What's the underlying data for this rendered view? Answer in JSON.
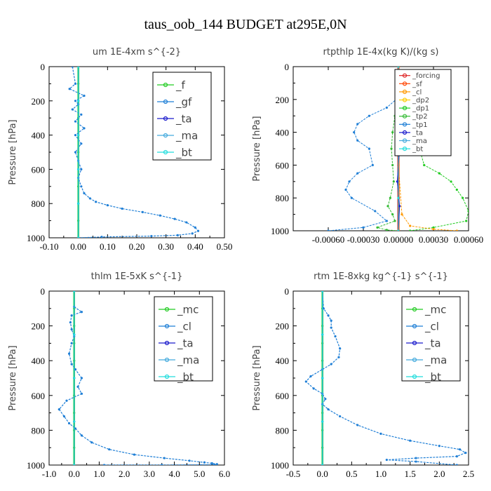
{
  "figure_title": "taus_oob_144  BUDGET at295E,0N",
  "colors": {
    "f": "#22cc22",
    "gf": "#1f7fd6",
    "ta": "#1a1acc",
    "ma": "#44aadd",
    "bt": "#22dddd",
    "mc": "#22cc22",
    "cl": "#1f7fd6",
    "forcing": "#dd2222",
    "sf": "#ff4400",
    "cl_rt": "#ff9900",
    "dp2": "#ffcc00",
    "dp1": "#22cc22",
    "tp2": "#33bb33",
    "tp1": "#1f7fd6"
  },
  "chart_data": [
    {
      "type": "line",
      "title": "um  1E-4xm s^{-2}",
      "ylabel": "Pressure [hPa]",
      "xlim": [
        -0.1,
        0.5
      ],
      "ylim": [
        1000,
        0
      ],
      "y_inverted": true,
      "xticks": [
        "-0.10",
        "0.00",
        "0.10",
        "0.20",
        "0.30",
        "0.40",
        "0.50"
      ],
      "yticks": [
        "0",
        "200",
        "400",
        "600",
        "800",
        "1000"
      ],
      "legend": [
        "_f",
        "_gf",
        "_ta",
        "_ma",
        "_bt"
      ],
      "legend_position": "top-right",
      "series": [
        {
          "name": "_f",
          "color_key": "f",
          "lw": 2.5,
          "x": [
            0,
            0,
            0,
            0,
            0,
            0,
            0,
            0,
            0,
            0,
            0
          ],
          "y": [
            0,
            100,
            200,
            300,
            400,
            500,
            600,
            700,
            800,
            900,
            1000
          ]
        },
        {
          "name": "_gf",
          "color_key": "gf",
          "lw": 1.2,
          "x": [
            -0.02,
            -0.01,
            -0.03,
            0.02,
            -0.01,
            0.0,
            -0.02,
            0.01,
            -0.01,
            0.02,
            -0.01,
            0.01,
            -0.01,
            0.0,
            0.01,
            0.0,
            0.01,
            0.02,
            0.04,
            0.06,
            0.1,
            0.15,
            0.22,
            0.28,
            0.33,
            0.37,
            0.4,
            0.41,
            0.39,
            0.34,
            0.25,
            0.08,
            0.0
          ],
          "y": [
            0,
            100,
            130,
            170,
            200,
            220,
            250,
            280,
            320,
            360,
            400,
            450,
            500,
            550,
            600,
            650,
            700,
            740,
            770,
            790,
            810,
            830,
            850,
            870,
            890,
            910,
            940,
            960,
            975,
            985,
            990,
            995,
            1000
          ]
        },
        {
          "name": "_ta",
          "color_key": "ta",
          "lw": 1,
          "x": [
            0,
            0,
            0,
            0,
            0,
            0
          ],
          "y": [
            0,
            200,
            400,
            600,
            800,
            1000
          ]
        },
        {
          "name": "_ma",
          "color_key": "ma",
          "lw": 1,
          "x": [
            0,
            0,
            0,
            0,
            0,
            0
          ],
          "y": [
            0,
            200,
            400,
            600,
            800,
            1000
          ]
        },
        {
          "name": "_bt",
          "color_key": "bt",
          "lw": 1,
          "x": [
            0,
            0,
            0,
            0,
            0,
            0
          ],
          "y": [
            0,
            200,
            400,
            600,
            800,
            1000
          ]
        }
      ]
    },
    {
      "type": "line",
      "title": "rtpthlp  1E-4x(kg K)/(kg s)",
      "ylabel": "Pressure [hPa]",
      "xlim": [
        -0.0009,
        0.0006
      ],
      "ylim": [
        1000,
        0
      ],
      "y_inverted": true,
      "xticks": [
        "-0.00060",
        "-0.00030",
        "0.00000",
        "0.00030",
        "0.00060"
      ],
      "xtick_values": [
        -0.0006,
        -0.0003,
        0.0,
        0.0003,
        0.0006
      ],
      "yticks": [
        "0",
        "200",
        "400",
        "600",
        "800",
        "1000"
      ],
      "legend": [
        "_forcing",
        "_sf",
        "_cl",
        "_dp2",
        "_dp1",
        "_tp2",
        "_tp1",
        "_ta",
        "_ma",
        "_bt"
      ],
      "legend_position": "top-right",
      "series": [
        {
          "name": "_tp1",
          "color_key": "tp1",
          "lw": 1,
          "x": [
            0,
            -2e-05,
            -0.0001,
            -0.00025,
            -0.00035,
            -0.00038,
            -0.00035,
            -0.00025,
            -0.00022,
            -0.00035,
            -0.00042,
            -0.00045,
            -0.0004,
            -0.0002,
            -0.0001,
            -0.0003,
            -0.0006
          ],
          "y": [
            0,
            200,
            250,
            300,
            350,
            400,
            450,
            500,
            600,
            650,
            700,
            750,
            800,
            880,
            940,
            980,
            1000
          ]
        },
        {
          "name": "_dp1",
          "color_key": "dp1",
          "lw": 1,
          "x": [
            0,
            3e-05,
            0.0001,
            0.00022,
            0.00026,
            0.00025,
            0.0002,
            0.00018,
            0.00022,
            0.00035,
            0.00045,
            0.0005,
            0.00055,
            0.0006,
            0.00058,
            0.0003,
            0.0001
          ],
          "y": [
            0,
            200,
            250,
            300,
            350,
            400,
            450,
            500,
            600,
            650,
            700,
            750,
            800,
            880,
            940,
            980,
            1000
          ]
        },
        {
          "name": "_cl",
          "color_key": "cl_rt",
          "lw": 1,
          "x": [
            0,
            0,
            3e-05,
            0.0001,
            0.0003,
            0.0005
          ],
          "y": [
            0,
            600,
            900,
            970,
            990,
            1000
          ]
        },
        {
          "name": "_tp2",
          "color_key": "tp2",
          "lw": 1,
          "x": [
            0,
            -3e-05,
            -5e-05,
            -6e-05,
            -5e-05,
            -4e-05,
            -7e-05,
            -9e-05,
            -5e-05,
            -3e-05,
            -0.00018,
            -0.0001,
            0
          ],
          "y": [
            0,
            300,
            400,
            500,
            600,
            700,
            800,
            850,
            900,
            940,
            980,
            995,
            1000
          ]
        },
        {
          "name": "_forcing",
          "color_key": "forcing",
          "lw": 3,
          "x": [
            0,
            0,
            0,
            0,
            0,
            0
          ],
          "y": [
            0,
            200,
            400,
            600,
            800,
            1000
          ]
        },
        {
          "name": "_sf",
          "color_key": "sf",
          "lw": 1.5,
          "x": [
            5e-06,
            5e-06,
            5e-06,
            5e-06
          ],
          "y": [
            0,
            400,
            800,
            1000
          ]
        },
        {
          "name": "_dp2",
          "color_key": "dp2",
          "lw": 1,
          "x": [
            0,
            0,
            0,
            0
          ],
          "y": [
            0,
            400,
            800,
            1000
          ]
        },
        {
          "name": "_ta",
          "color_key": "ta",
          "lw": 1,
          "x": [
            0,
            1e-05,
            -1e-05,
            1e-05,
            0
          ],
          "y": [
            0,
            500,
            700,
            850,
            1000
          ]
        },
        {
          "name": "_ma",
          "color_key": "ma",
          "lw": 1,
          "x": [
            0,
            0,
            0,
            0
          ],
          "y": [
            0,
            400,
            800,
            1000
          ]
        },
        {
          "name": "_bt",
          "color_key": "bt",
          "lw": 1,
          "x": [
            0,
            0,
            0,
            0
          ],
          "y": [
            0,
            400,
            800,
            1000
          ]
        }
      ]
    },
    {
      "type": "line",
      "title": "thlm  1E-5xK s^{-1}",
      "ylabel": "Pressure [hPa]",
      "xlim": [
        -1.0,
        6.0
      ],
      "ylim": [
        1000,
        0
      ],
      "y_inverted": true,
      "xticks": [
        "-1.0",
        "0.0",
        "1.0",
        "2.0",
        "3.0",
        "4.0",
        "5.0",
        "6.0"
      ],
      "yticks": [
        "0",
        "200",
        "400",
        "600",
        "800",
        "1000"
      ],
      "legend": [
        "_mc",
        "_cl",
        "_ta",
        "_ma",
        "_bt"
      ],
      "legend_position": "top-right",
      "series": [
        {
          "name": "_mc",
          "color_key": "mc",
          "lw": 2.5,
          "x": [
            0,
            0,
            0,
            0,
            0,
            0,
            0,
            0,
            0,
            0,
            0
          ],
          "y": [
            0,
            100,
            200,
            300,
            400,
            500,
            600,
            700,
            800,
            900,
            1000
          ]
        },
        {
          "name": "_cl",
          "color_key": "cl",
          "lw": 1.2,
          "x": [
            0,
            0.0,
            0.3,
            -0.1,
            -0.15,
            -0.1,
            0.0,
            -0.1,
            -0.2,
            -0.1,
            0.05,
            0.3,
            0.15,
            0.3,
            -0.3,
            -0.6,
            -0.4,
            -0.2,
            0.05,
            0.3,
            0.7,
            1.4,
            2.4,
            3.6,
            4.6,
            5.2,
            5.5,
            5.7,
            5.6,
            3.5,
            1.2
          ],
          "y": [
            0,
            90,
            120,
            140,
            180,
            220,
            260,
            300,
            360,
            420,
            450,
            500,
            550,
            590,
            630,
            680,
            720,
            760,
            790,
            830,
            870,
            910,
            940,
            960,
            975,
            985,
            990,
            995,
            998,
            1000,
            1000
          ]
        },
        {
          "name": "_ta",
          "color_key": "ta",
          "lw": 1,
          "x": [
            0,
            0,
            0,
            0,
            0
          ],
          "y": [
            0,
            250,
            500,
            750,
            1000
          ]
        },
        {
          "name": "_ma",
          "color_key": "ma",
          "lw": 1,
          "x": [
            0,
            0,
            0,
            0,
            0
          ],
          "y": [
            0,
            250,
            500,
            750,
            1000
          ]
        },
        {
          "name": "_bt",
          "color_key": "bt",
          "lw": 1,
          "x": [
            0,
            0,
            0,
            0,
            0
          ],
          "y": [
            0,
            250,
            500,
            750,
            1000
          ]
        }
      ]
    },
    {
      "type": "line",
      "title": "rtm  1E-8xkg kg^{-1} s^{-1}",
      "ylabel": "Pressure [hPa]",
      "xlim": [
        -0.5,
        2.5
      ],
      "ylim": [
        1000,
        0
      ],
      "y_inverted": true,
      "xticks": [
        "-0.5",
        "0.0",
        "0.5",
        "1.0",
        "1.5",
        "2.0",
        "2.5"
      ],
      "yticks": [
        "0",
        "200",
        "400",
        "600",
        "800",
        "1000"
      ],
      "legend": [
        "_mc",
        "_cl",
        "_ta",
        "_ma",
        "_bt"
      ],
      "legend_position": "top-right",
      "series": [
        {
          "name": "_mc",
          "color_key": "mc",
          "lw": 2.5,
          "x": [
            0,
            0,
            0,
            0,
            0,
            0,
            0,
            0,
            0,
            0,
            0
          ],
          "y": [
            0,
            100,
            200,
            300,
            400,
            500,
            600,
            700,
            800,
            900,
            1000
          ]
        },
        {
          "name": "_cl",
          "color_key": "cl",
          "lw": 1.2,
          "x": [
            0,
            0.02,
            0.1,
            0.15,
            0.15,
            0.22,
            0.3,
            0.28,
            0.15,
            0.0,
            -0.2,
            -0.28,
            -0.15,
            0.0,
            0.05,
            0.0,
            0.1,
            0.3,
            0.6,
            1.0,
            1.5,
            2.0,
            2.35,
            2.45,
            2.3,
            1.6,
            1.1,
            1.6,
            2.3
          ],
          "y": [
            0,
            100,
            140,
            170,
            210,
            260,
            330,
            380,
            420,
            450,
            490,
            520,
            560,
            590,
            620,
            650,
            680,
            720,
            770,
            820,
            860,
            890,
            910,
            930,
            950,
            960,
            970,
            980,
            1000
          ]
        },
        {
          "name": "_ta",
          "color_key": "ta",
          "lw": 1,
          "x": [
            0,
            0,
            0,
            0,
            0
          ],
          "y": [
            0,
            250,
            500,
            750,
            1000
          ]
        },
        {
          "name": "_ma",
          "color_key": "ma",
          "lw": 1,
          "x": [
            0,
            0,
            0,
            0,
            0
          ],
          "y": [
            0,
            250,
            500,
            750,
            1000
          ]
        },
        {
          "name": "_bt",
          "color_key": "bt",
          "lw": 1,
          "x": [
            0,
            0,
            0,
            0,
            0
          ],
          "y": [
            0,
            250,
            500,
            750,
            1000
          ]
        }
      ]
    }
  ]
}
